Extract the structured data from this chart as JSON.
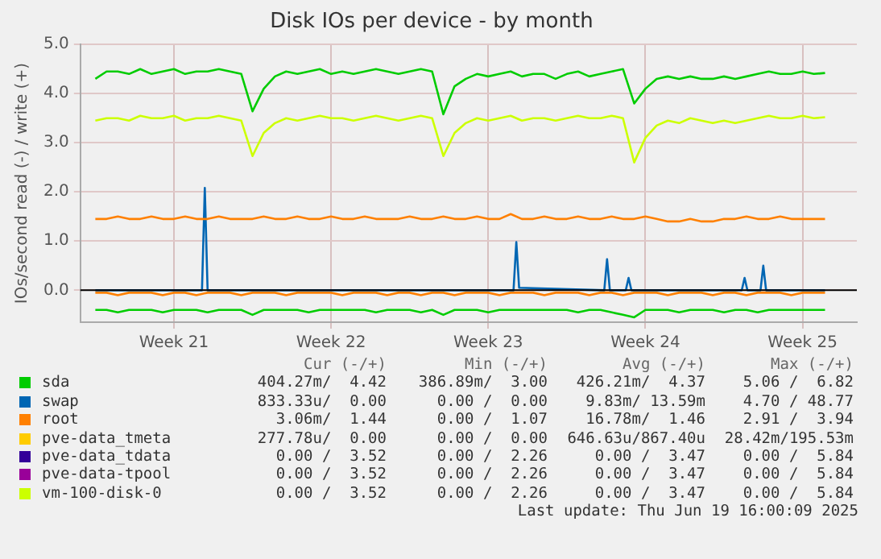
{
  "chart_data": {
    "type": "line",
    "title": "Disk IOs per device - by month",
    "ylabel": "IOs/second read (-) / write (+)",
    "x": [
      "2025-05-18T00:00",
      "2025-05-18T12:00",
      "2025-05-19T00:00",
      "2025-05-19T12:00",
      "2025-05-20T00:00",
      "2025-05-20T12:00",
      "2025-05-21T00:00",
      "2025-05-21T12:00",
      "2025-05-22T00:00",
      "2025-05-22T12:00",
      "2025-05-23T00:00",
      "2025-05-23T12:00",
      "2025-05-24T00:00",
      "2025-05-24T12:00",
      "2025-05-25T00:00",
      "2025-05-25T12:00",
      "2025-05-26T00:00",
      "2025-05-26T12:00",
      "2025-05-27T00:00",
      "2025-05-27T12:00",
      "2025-05-28T00:00",
      "2025-05-28T12:00",
      "2025-05-29T00:00",
      "2025-05-29T12:00",
      "2025-05-30T00:00",
      "2025-05-30T12:00",
      "2025-05-31T00:00",
      "2025-05-31T12:00",
      "2025-06-01T00:00",
      "2025-06-01T12:00",
      "2025-06-02T00:00",
      "2025-06-02T12:00",
      "2025-06-03T00:00",
      "2025-06-03T12:00",
      "2025-06-04T00:00",
      "2025-06-04T12:00",
      "2025-06-05T00:00",
      "2025-06-05T12:00",
      "2025-06-06T00:00",
      "2025-06-06T12:00",
      "2025-06-07T00:00",
      "2025-06-07T12:00",
      "2025-06-08T00:00",
      "2025-06-08T12:00",
      "2025-06-09T00:00",
      "2025-06-09T12:00",
      "2025-06-10T00:00",
      "2025-06-10T12:00",
      "2025-06-11T00:00",
      "2025-06-11T12:00",
      "2025-06-12T00:00",
      "2025-06-12T12:00",
      "2025-06-13T00:00",
      "2025-06-13T12:00",
      "2025-06-14T00:00",
      "2025-06-14T12:00",
      "2025-06-15T00:00",
      "2025-06-15T12:00",
      "2025-06-16T00:00",
      "2025-06-16T12:00",
      "2025-06-17T00:00",
      "2025-06-17T12:00",
      "2025-06-18T00:00",
      "2025-06-18T12:00",
      "2025-06-19T00:00",
      "2025-06-19T12:00"
    ],
    "xlim": [
      "2025-05-17T08:00",
      "2025-06-20T22:00"
    ],
    "xticks": [
      {
        "value": "2025-05-21T12:00",
        "label": "Week 21"
      },
      {
        "value": "2025-05-28T12:00",
        "label": "Week 22"
      },
      {
        "value": "2025-06-04T12:00",
        "label": "Week 23"
      },
      {
        "value": "2025-06-11T12:00",
        "label": "Week 24"
      },
      {
        "value": "2025-06-18T12:00",
        "label": "Week 25"
      }
    ],
    "ylim": [
      -0.65,
      5.0
    ],
    "yticks": [
      {
        "value": 0,
        "label": "0.0"
      },
      {
        "value": 1,
        "label": "1.0"
      },
      {
        "value": 2,
        "label": "2.0"
      },
      {
        "value": 3,
        "label": "3.0"
      },
      {
        "value": 4,
        "label": "4.0"
      },
      {
        "value": 5,
        "label": "5.0"
      }
    ],
    "grid": true,
    "legend": "bottom",
    "ref_lines": [
      {
        "axis": "y",
        "value": 0,
        "color": "#000000"
      }
    ],
    "series": [
      {
        "name": "sda",
        "color": "#00cc00",
        "values": [
          4.3,
          4.45,
          4.45,
          4.4,
          4.5,
          4.4,
          4.45,
          4.5,
          4.4,
          4.45,
          4.45,
          4.5,
          4.45,
          4.4,
          3.64,
          4.1,
          4.35,
          4.45,
          4.4,
          4.45,
          4.5,
          4.4,
          4.45,
          4.4,
          4.45,
          4.5,
          4.45,
          4.4,
          4.45,
          4.5,
          4.45,
          3.58,
          4.15,
          4.3,
          4.4,
          4.35,
          4.4,
          4.45,
          4.35,
          4.4,
          4.4,
          4.3,
          4.4,
          4.45,
          4.35,
          4.4,
          4.45,
          4.5,
          3.8,
          4.1,
          4.3,
          4.35,
          4.3,
          4.35,
          4.3,
          4.3,
          4.35,
          4.3,
          4.35,
          4.4,
          4.45,
          4.4,
          4.4,
          4.45,
          4.4,
          4.42
        ]
      },
      {
        "name": "swap",
        "color": "#0066b3",
        "x": [
          "2025-05-18T00:00",
          "2025-05-22T18:00",
          "2025-05-22T21:00",
          "2025-05-23T00:00",
          "2025-06-05T15:00",
          "2025-06-05T18:00",
          "2025-06-05T21:00",
          "2025-06-09T16:00",
          "2025-06-09T19:00",
          "2025-06-09T22:00",
          "2025-06-10T15:00",
          "2025-06-10T18:00",
          "2025-06-10T21:00",
          "2025-06-15T19:00",
          "2025-06-15T22:00",
          "2025-06-16T01:00",
          "2025-06-16T15:00",
          "2025-06-16T18:00",
          "2025-06-16T21:00",
          "2025-06-19T12:00"
        ],
        "values": [
          0,
          0,
          2.08,
          0,
          0,
          0.98,
          0.05,
          0,
          0.63,
          0,
          0,
          0.25,
          0,
          0,
          0.25,
          0,
          0,
          0.5,
          0,
          0
        ]
      },
      {
        "name": "root",
        "color": "#ff8000",
        "values": [
          1.45,
          1.45,
          1.5,
          1.45,
          1.45,
          1.5,
          1.45,
          1.45,
          1.5,
          1.45,
          1.45,
          1.5,
          1.45,
          1.45,
          1.45,
          1.5,
          1.45,
          1.45,
          1.5,
          1.45,
          1.45,
          1.5,
          1.45,
          1.45,
          1.5,
          1.45,
          1.45,
          1.45,
          1.5,
          1.45,
          1.45,
          1.5,
          1.45,
          1.45,
          1.5,
          1.45,
          1.45,
          1.55,
          1.45,
          1.45,
          1.5,
          1.45,
          1.45,
          1.5,
          1.45,
          1.45,
          1.5,
          1.45,
          1.45,
          1.5,
          1.45,
          1.4,
          1.4,
          1.45,
          1.4,
          1.4,
          1.45,
          1.45,
          1.5,
          1.45,
          1.45,
          1.5,
          1.45,
          1.45,
          1.45,
          1.45
        ]
      },
      {
        "name": "pve-data_tmeta",
        "color": "#ffcc00",
        "values": [
          null,
          null,
          null,
          null,
          null,
          null,
          null,
          null,
          null,
          null,
          null,
          null,
          null,
          null,
          null,
          null,
          null,
          null,
          null,
          null,
          null,
          null,
          null,
          null,
          null,
          null,
          null,
          null,
          null,
          null,
          null,
          null,
          null,
          null,
          null,
          null,
          null,
          null,
          null,
          null,
          null,
          null,
          null,
          null,
          null,
          null,
          null,
          null,
          null,
          null,
          null,
          null,
          null,
          null,
          null,
          null,
          null,
          null,
          null,
          null,
          null,
          null,
          null,
          null,
          null,
          null
        ]
      },
      {
        "name": "pve-data_tdata",
        "color": "#330099",
        "values": [
          null,
          null,
          null,
          null,
          null,
          null,
          null,
          null,
          null,
          null,
          null,
          null,
          null,
          null,
          null,
          null,
          null,
          null,
          null,
          null,
          null,
          null,
          null,
          null,
          null,
          null,
          null,
          null,
          null,
          null,
          null,
          null,
          null,
          null,
          null,
          null,
          null,
          null,
          null,
          null,
          null,
          null,
          null,
          null,
          null,
          null,
          null,
          null,
          null,
          null,
          null,
          null,
          null,
          null,
          null,
          null,
          null,
          null,
          null,
          null,
          null,
          null,
          null,
          null,
          null,
          null
        ]
      },
      {
        "name": "pve-data-tpool",
        "color": "#990099",
        "values": [
          null,
          null,
          null,
          null,
          null,
          null,
          null,
          null,
          null,
          null,
          null,
          null,
          null,
          null,
          null,
          null,
          null,
          null,
          null,
          null,
          null,
          null,
          null,
          null,
          null,
          null,
          null,
          null,
          null,
          null,
          null,
          null,
          null,
          null,
          null,
          null,
          null,
          null,
          null,
          null,
          null,
          null,
          null,
          null,
          null,
          null,
          null,
          null,
          null,
          null,
          null,
          null,
          null,
          null,
          null,
          null,
          null,
          null,
          null,
          null,
          null,
          null,
          null,
          null,
          null,
          null
        ]
      },
      {
        "name": "vm-100-disk-0",
        "color": "#ccff00",
        "values": [
          3.45,
          3.5,
          3.5,
          3.45,
          3.55,
          3.5,
          3.5,
          3.55,
          3.45,
          3.5,
          3.5,
          3.55,
          3.5,
          3.45,
          2.73,
          3.2,
          3.4,
          3.5,
          3.45,
          3.5,
          3.55,
          3.5,
          3.5,
          3.45,
          3.5,
          3.55,
          3.5,
          3.45,
          3.5,
          3.55,
          3.5,
          2.73,
          3.2,
          3.4,
          3.5,
          3.45,
          3.5,
          3.55,
          3.45,
          3.5,
          3.5,
          3.45,
          3.5,
          3.55,
          3.5,
          3.5,
          3.55,
          3.5,
          2.6,
          3.1,
          3.35,
          3.45,
          3.4,
          3.5,
          3.45,
          3.4,
          3.45,
          3.4,
          3.45,
          3.5,
          3.55,
          3.5,
          3.5,
          3.55,
          3.5,
          3.52
        ]
      },
      {
        "color": "#00cc00",
        "values": [
          -0.4,
          -0.4,
          -0.45,
          -0.4,
          -0.4,
          -0.4,
          -0.45,
          -0.4,
          -0.4,
          -0.4,
          -0.45,
          -0.4,
          -0.4,
          -0.4,
          -0.5,
          -0.4,
          -0.4,
          -0.4,
          -0.4,
          -0.45,
          -0.4,
          -0.4,
          -0.4,
          -0.4,
          -0.4,
          -0.45,
          -0.4,
          -0.4,
          -0.4,
          -0.45,
          -0.4,
          -0.5,
          -0.4,
          -0.4,
          -0.4,
          -0.45,
          -0.4,
          -0.4,
          -0.4,
          -0.4,
          -0.4,
          -0.4,
          -0.4,
          -0.45,
          -0.4,
          -0.4,
          -0.45,
          -0.5,
          -0.55,
          -0.4,
          -0.4,
          -0.4,
          -0.45,
          -0.4,
          -0.4,
          -0.4,
          -0.45,
          -0.4,
          -0.4,
          -0.45,
          -0.4,
          -0.4,
          -0.4,
          -0.4,
          -0.4,
          -0.4
        ]
      },
      {
        "color": "#ff8000",
        "values": [
          -0.05,
          -0.05,
          -0.1,
          -0.05,
          -0.05,
          -0.05,
          -0.1,
          -0.05,
          -0.05,
          -0.1,
          -0.05,
          -0.05,
          -0.05,
          -0.1,
          -0.05,
          -0.05,
          -0.05,
          -0.1,
          -0.05,
          -0.05,
          -0.05,
          -0.05,
          -0.1,
          -0.05,
          -0.05,
          -0.05,
          -0.1,
          -0.05,
          -0.05,
          -0.1,
          -0.05,
          -0.05,
          -0.1,
          -0.05,
          -0.05,
          -0.05,
          -0.1,
          -0.05,
          -0.05,
          -0.05,
          -0.1,
          -0.05,
          -0.05,
          -0.05,
          -0.1,
          -0.05,
          -0.05,
          -0.1,
          -0.05,
          -0.05,
          -0.05,
          -0.1,
          -0.05,
          -0.05,
          -0.05,
          -0.1,
          -0.05,
          -0.05,
          -0.1,
          -0.05,
          -0.05,
          -0.05,
          -0.1,
          -0.05,
          -0.05,
          -0.05
        ]
      }
    ],
    "annotations": [
      "Cur (-/+)",
      "Min (-/+)",
      "Avg (-/+)",
      "Max (-/+)",
      "404.27m/  4.42",
      "386.89m/  3.00",
      "426.21m/  4.37",
      "5.06 /  6.82",
      "833.33u/  0.00",
      "0.00 /  0.00",
      "9.83m/ 13.59m",
      "4.70 / 48.77",
      "3.06m/  1.44",
      "0.00 /  1.07",
      "16.78m/  1.46",
      "2.91 /  3.94",
      "277.78u/  0.00",
      "0.00 /  0.00",
      "646.63u/867.40u",
      "28.42m/195.53m",
      "0.00 /  3.52",
      "0.00 /  2.26",
      "0.00 /  3.47",
      "0.00 /  5.84",
      "0.00 /  3.52",
      "0.00 /  2.26",
      "0.00 /  3.47",
      "0.00 /  5.84",
      "0.00 /  3.52",
      "0.00 /  2.26",
      "0.00 /  3.47",
      "0.00 /  5.84",
      "Last update: Thu Jun 19 16:00:09 2025"
    ]
  }
}
